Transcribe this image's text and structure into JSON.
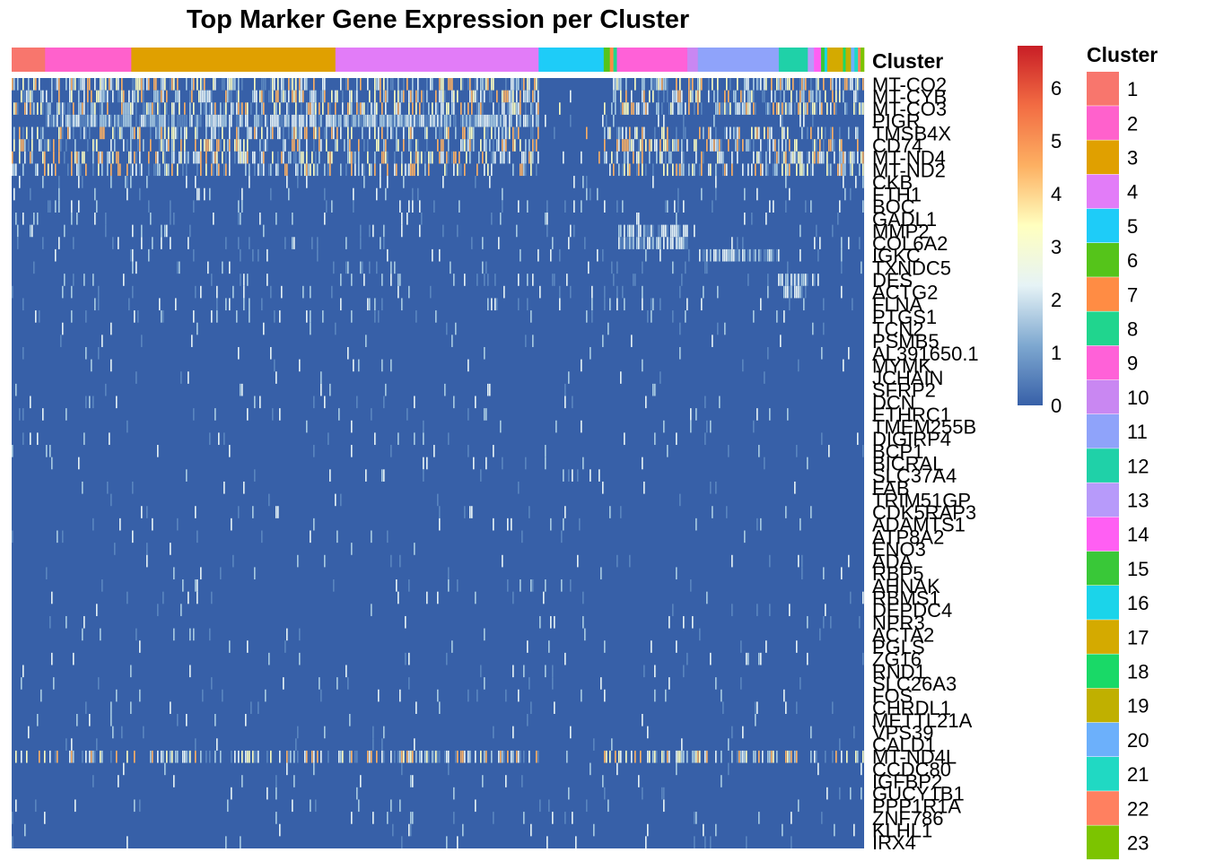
{
  "chart_data": {
    "type": "heatmap",
    "title": "Top Marker Gene Expression per Cluster",
    "annotation_label": "Cluster",
    "value_range": [
      0,
      6.8
    ],
    "scale_ticks": [
      0,
      1,
      2,
      3,
      4,
      5,
      6
    ],
    "colors": {
      "low": "#3760A8",
      "scale": [
        "#3760A8",
        "#7EA8D0",
        "#E6F3F6",
        "#FFFFBF",
        "#FDB062",
        "#F26C43",
        "#C81E26"
      ]
    },
    "genes": [
      "MT-CO2",
      "MT-CYB",
      "MT-CO3",
      "PIGR",
      "TMSB4X",
      "CD74",
      "MT-ND4",
      "MT-ND2",
      "CKB",
      "FTH1",
      "BOC",
      "GADL1",
      "MMP2",
      "COL6A2",
      "IGKC",
      "TXNDC5",
      "DES",
      "ACTG2",
      "FLNA",
      "PTGS1",
      "TCN2",
      "PSMB5",
      "AL391650.1",
      "MYMK",
      "JCHAIN",
      "SFRP2",
      "DCN",
      "ETHRC1",
      "TMEM255B",
      "DIGIRP4",
      "BCP1",
      "BICRAL",
      "SLC37A4",
      "FAB",
      "TRIM51GP",
      "CDK5RAP3",
      "ADAMTS1",
      "ATP8A2",
      "ENO3",
      "ADA",
      "RBP5",
      "AHNAK",
      "RBMS1",
      "DEPDC4",
      "NPR3",
      "ACTA2",
      "PGLS",
      "ZG16",
      "RND1",
      "SLC26A3",
      "FOS",
      "CHRDL1",
      "METTL21A",
      "VPS39",
      "CALD1",
      "MT-ND4L",
      "CCDC80",
      "IGFBP2",
      "GUCY1B1",
      "PPP1R1A",
      "ZNF786",
      "KLHL1",
      "IRX4"
    ],
    "clusters": [
      {
        "name": "1",
        "color": "#F8766D",
        "cells": 0.038
      },
      {
        "name": "2",
        "color": "#FF61CC",
        "cells": 0.098
      },
      {
        "name": "3",
        "color": "#E0A000",
        "cells": 0.232
      },
      {
        "name": "4",
        "color": "#E27CF8",
        "cells": 0.231
      },
      {
        "name": "5",
        "color": "#1ECCF8",
        "cells": 0.074
      },
      {
        "name": "6",
        "color": "#55C41A",
        "cells": 0.007
      },
      {
        "name": "7",
        "color": "#FF8C44",
        "cells": 0.004
      },
      {
        "name": "8",
        "color": "#20D58E",
        "cells": 0.004
      },
      {
        "name": "9",
        "color": "#FF61D8",
        "cells": 0.08
      },
      {
        "name": "10",
        "color": "#C987F2",
        "cells": 0.012
      },
      {
        "name": "11",
        "color": "#8FA3FA",
        "cells": 0.092
      },
      {
        "name": "12",
        "color": "#1FD1A8",
        "cells": 0.033
      },
      {
        "name": "13",
        "color": "#B79AFA",
        "cells": 0.007
      },
      {
        "name": "14",
        "color": "#FF5FF3",
        "cells": 0.008
      },
      {
        "name": "15",
        "color": "#39C838",
        "cells": 0.004
      },
      {
        "name": "16",
        "color": "#1BD4EA",
        "cells": 0.003
      },
      {
        "name": "17",
        "color": "#D4AA00",
        "cells": 0.018
      },
      {
        "name": "18",
        "color": "#19D967",
        "cells": 0.003
      },
      {
        "name": "19",
        "color": "#C0B000",
        "cells": 0.006
      },
      {
        "name": "20",
        "color": "#6CB0FB",
        "cells": 0.004
      },
      {
        "name": "21",
        "color": "#20D9C3",
        "cells": 0.004
      },
      {
        "name": "22",
        "color": "#FF8060",
        "cells": 0.003
      },
      {
        "name": "23",
        "color": "#7CC400",
        "cells": 0.004
      }
    ]
  }
}
